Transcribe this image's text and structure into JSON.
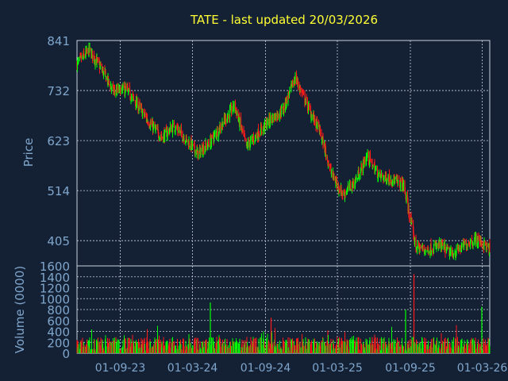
{
  "theme": {
    "background": "#142034",
    "title_color": "#ffff33",
    "axis_text_color": "#7fa6cc",
    "grid_color": "#c8d2e0",
    "up_color": "#00ff00",
    "down_color": "#ff1a1a"
  },
  "chart_data": [
    {
      "type": "candlestick",
      "title": "TATE - last updated 20/03/2026",
      "ylabel": "Price",
      "ylim": [
        350,
        841
      ],
      "y_ticks": [
        "841",
        "732",
        "623",
        "514",
        "405"
      ],
      "x_ticks": [
        "01-09-23",
        "01-03-24",
        "01-09-24",
        "01-03-25",
        "01-09-25",
        "01-03-26"
      ],
      "x_range": [
        "2023-05-15",
        "2026-03-20"
      ],
      "grid": true,
      "series": [
        {
          "dates": [
            "2023-05-15",
            "2023-06-15",
            "2023-07-15",
            "2023-08-15",
            "2023-09-15",
            "2023-10-15",
            "2023-11-15",
            "2023-12-15",
            "2024-01-15",
            "2024-02-15",
            "2024-03-15",
            "2024-04-15",
            "2024-05-15",
            "2024-06-15",
            "2024-07-15",
            "2024-08-15",
            "2024-09-15",
            "2024-10-15",
            "2024-11-15",
            "2024-12-15",
            "2025-01-15",
            "2025-02-15",
            "2025-03-15",
            "2025-04-15",
            "2025-05-15",
            "2025-06-15",
            "2025-07-15",
            "2025-08-15",
            "2025-09-15",
            "2025-10-15",
            "2025-11-15",
            "2025-12-15",
            "2026-01-15",
            "2026-02-15",
            "2026-03-20"
          ],
          "close": [
            790,
            820,
            780,
            730,
            735,
            700,
            660,
            630,
            655,
            625,
            595,
            620,
            660,
            700,
            610,
            640,
            670,
            690,
            760,
            700,
            645,
            550,
            505,
            535,
            590,
            545,
            540,
            525,
            390,
            385,
            395,
            375,
            395,
            410,
            385
          ]
        }
      ]
    },
    {
      "type": "bar",
      "ylabel": "Volume (0000)",
      "ylim": [
        0,
        1600
      ],
      "y_ticks": [
        "1600",
        "1400",
        "1200",
        "1000",
        "800",
        "600",
        "400",
        "200",
        "0"
      ],
      "notable_spikes": [
        {
          "date": "2024-04-15",
          "value": 930
        },
        {
          "date": "2024-09-15",
          "value": 650
        },
        {
          "date": "2025-08-20",
          "value": 800
        },
        {
          "date": "2025-09-10",
          "value": 1450
        },
        {
          "date": "2026-02-28",
          "value": 850
        }
      ],
      "typical_range": [
        50,
        300
      ]
    }
  ]
}
